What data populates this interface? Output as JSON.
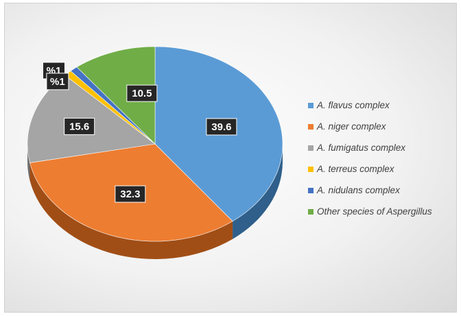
{
  "chart_data": {
    "type": "pie",
    "title": "",
    "legend_position": "right",
    "slices": [
      {
        "name": "A. flavus complex",
        "value": 39.6,
        "label": "39.6",
        "color": "#5B9BD5",
        "side_color": "#2F5F8A"
      },
      {
        "name": "A. niger complex",
        "value": 32.3,
        "label": "32.3",
        "color": "#ED7D31",
        "side_color": "#A14E16"
      },
      {
        "name": "A. fumigatus complex",
        "value": 15.6,
        "label": "15.6",
        "color": "#A5A5A5",
        "side_color": "#6E6E6E"
      },
      {
        "name": "A. terreus complex",
        "value": 1,
        "label": "%1",
        "color": "#FFC000",
        "side_color": "#B38600"
      },
      {
        "name": "A. nidulans complex",
        "value": 1,
        "label": "%1",
        "color": "#4472C4",
        "side_color": "#2A4A85"
      },
      {
        "name": "Other species of Aspergillus",
        "value": 10.5,
        "label": "10.5",
        "color": "#70AD47",
        "side_color": "#4A7A2C"
      }
    ]
  }
}
